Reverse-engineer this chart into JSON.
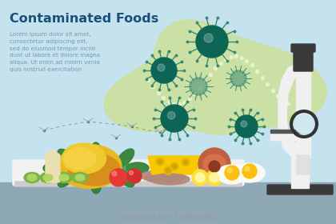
{
  "bg_color": "#c5e3ef",
  "table_color": "#8fa8b5",
  "title": "Contaminated Foods",
  "title_color": "#1a4f7a",
  "title_fontsize": 11.5,
  "lorem_text": "Lorem ipsum dolor sit amet,\nconsectetur adipiscing elit,\nsed do eiusmod tempor incidi\ndunt ut labore et dolore magna\naliqua. Ut enim ad minim venia\nquis nostrud exercitation",
  "lorem_color": "#7a9aaa",
  "lorem_fontsize": 5.2,
  "blob_color": "#cce09a",
  "bacteria_color_dark": "#0d6655",
  "bacteria_color_light": "#3a8a72",
  "dna_dot_color": "#e8f5c8",
  "microscope_body": "#f0f0f0",
  "microscope_dark": "#3a3a3a",
  "shutterstock_text": "shutterstock.com • 1846224601",
  "shutterstock_color": "#999999",
  "shutterstock_fontsize": 5.5,
  "plate_color": "#f2f2f2",
  "plate_shadow": "#cccccc"
}
